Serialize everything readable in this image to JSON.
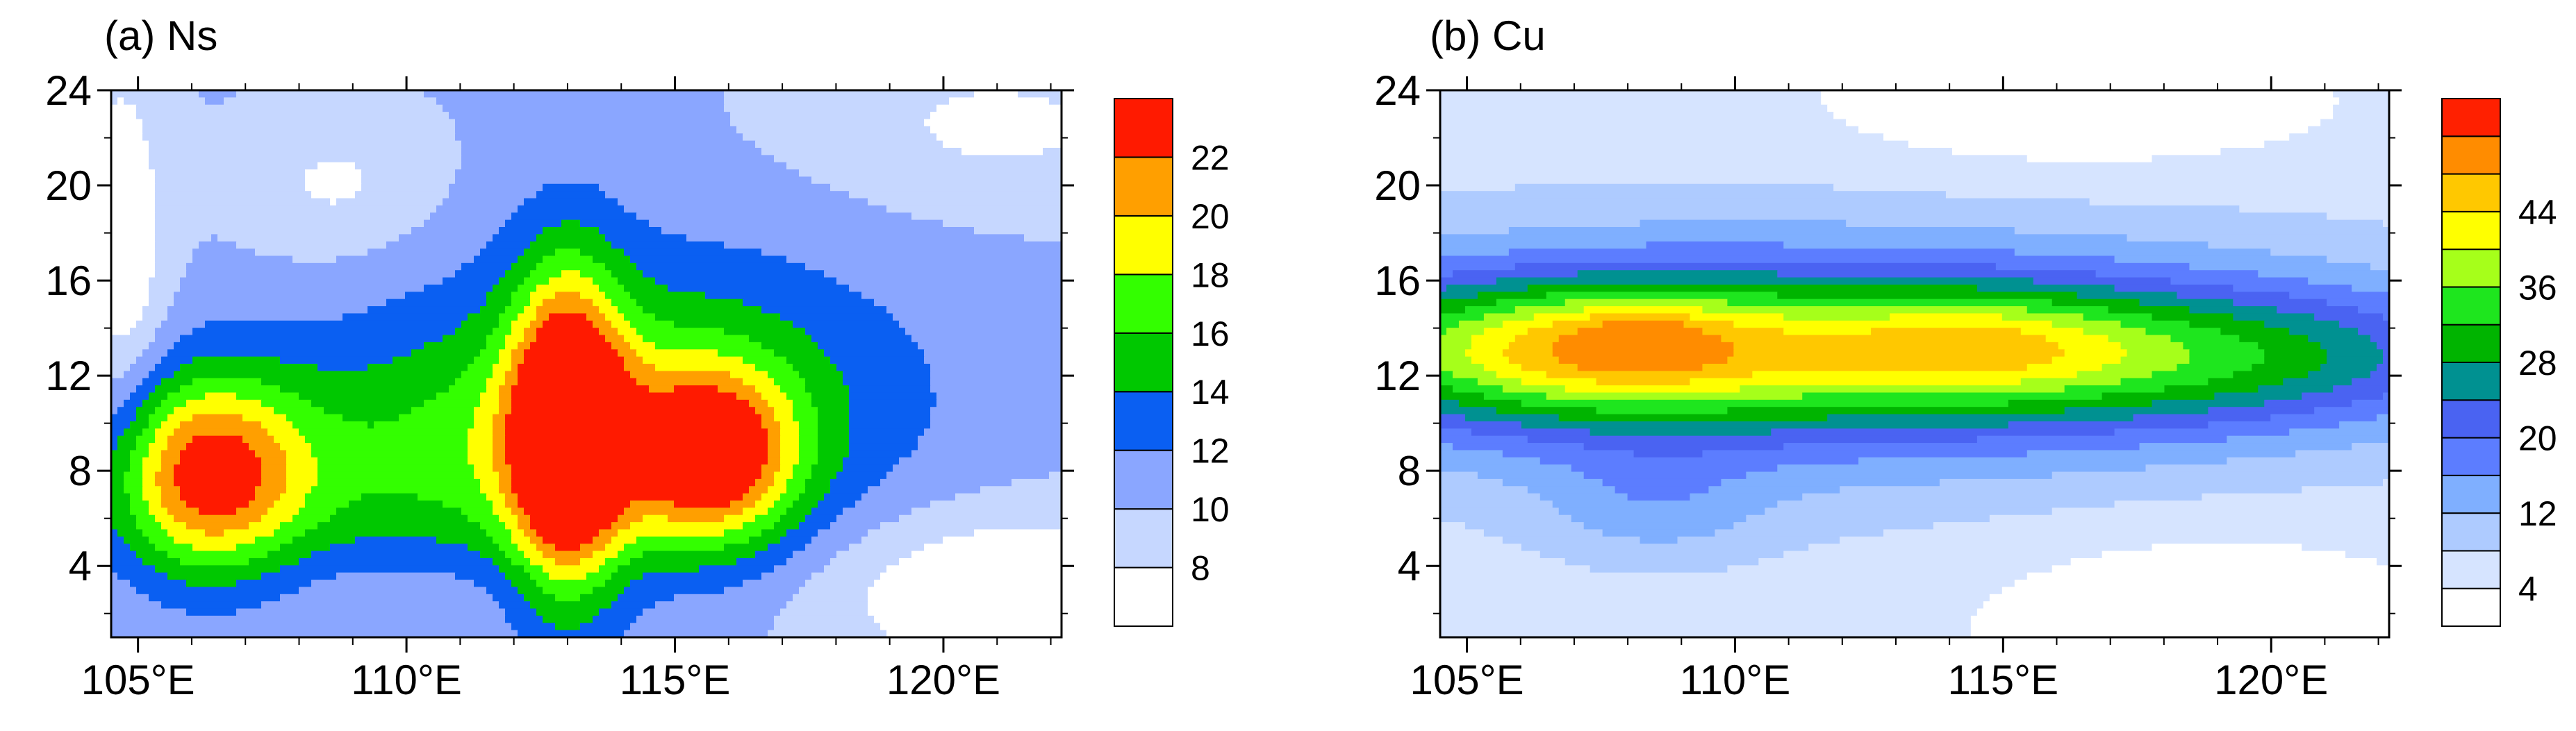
{
  "chart_data": [
    {
      "type": "heatmap",
      "subtype": "filled-contour",
      "title": "(a) Ns",
      "xlabel": "",
      "ylabel": "",
      "xlim": [
        104.5,
        122.2
      ],
      "ylim": [
        1,
        24
      ],
      "x_ticks": [
        105,
        110,
        115,
        120
      ],
      "x_tick_labels": [
        "105°E",
        "110°E",
        "115°E",
        "120°E"
      ],
      "y_ticks": [
        4,
        8,
        12,
        16,
        20,
        24
      ],
      "y_tick_labels": [
        "4",
        "8",
        "12",
        "16",
        "20",
        "24"
      ],
      "contour_levels": [
        8,
        10,
        12,
        14,
        16,
        18,
        20,
        22
      ],
      "colorbar_labels": [
        "22",
        "20",
        "18",
        "16",
        "14",
        "12",
        "10",
        "8"
      ],
      "colors": [
        "#ffffff",
        "#c6d7ff",
        "#8aa6ff",
        "#0a5ff2",
        "#00c800",
        "#33ff00",
        "#ffff00",
        "#ff9f00",
        "#ff1a00"
      ],
      "field": {
        "base": 10.2,
        "blobs": [
          {
            "x": 106.3,
            "y": 7.8,
            "amp": 11.5,
            "sx": 1.3,
            "sy": 3.0
          },
          {
            "x": 113.0,
            "y": 9.6,
            "amp": 13.8,
            "sx": 0.75,
            "sy": 4.8
          },
          {
            "x": 115.7,
            "y": 8.6,
            "amp": 10.8,
            "sx": 1.1,
            "sy": 2.6
          },
          {
            "x": 114.5,
            "y": 11.0,
            "amp": 5.5,
            "sx": 3.5,
            "sy": 4.5
          },
          {
            "x": 110.5,
            "y": 8.0,
            "amp": 4.2,
            "sx": 3.5,
            "sy": 3.5
          },
          {
            "x": 108.7,
            "y": 20.0,
            "amp": -2.6,
            "sx": 1.3,
            "sy": 2.2
          },
          {
            "x": 104.7,
            "y": 17.0,
            "amp": -4.0,
            "sx": 0.6,
            "sy": 6.0
          },
          {
            "x": 121.0,
            "y": 3.0,
            "amp": -4.5,
            "sx": 2.5,
            "sy": 2.5
          },
          {
            "x": 121.0,
            "y": 22.5,
            "amp": -2.6,
            "sx": 2.5,
            "sy": 2.5
          },
          {
            "x": 110.0,
            "y": 3.0,
            "amp": -1.2,
            "sx": 3.0,
            "sy": 1.5
          }
        ]
      }
    },
    {
      "type": "heatmap",
      "subtype": "filled-contour",
      "title": "(b) Cu",
      "xlabel": "",
      "ylabel": "",
      "xlim": [
        104.5,
        122.2
      ],
      "ylim": [
        1,
        24
      ],
      "x_ticks": [
        105,
        110,
        115,
        120
      ],
      "x_tick_labels": [
        "105°E",
        "110°E",
        "115°E",
        "120°E"
      ],
      "y_ticks": [
        4,
        8,
        12,
        16,
        20,
        24
      ],
      "y_tick_labels": [
        "4",
        "8",
        "12",
        "16",
        "20",
        "24"
      ],
      "contour_levels": [
        4,
        8,
        12,
        16,
        20,
        24,
        28,
        32,
        36,
        40,
        44,
        48
      ],
      "colorbar_labels": [
        "44",
        "36",
        "28",
        "20",
        "12",
        "4"
      ],
      "colors": [
        "#ffffff",
        "#d6e4ff",
        "#aecbff",
        "#7fafff",
        "#5c7dff",
        "#4a63f2",
        "#009191",
        "#00b400",
        "#1ee61e",
        "#a6ff1a",
        "#ffff00",
        "#ffc800",
        "#ff8c00",
        "#ff2000"
      ],
      "field": {
        "base": 4.5,
        "blobs": [
          {
            "x": 109.0,
            "y": 13.0,
            "amp": 25.0,
            "sx": 6.5,
            "sy": 2.4
          },
          {
            "x": 107.5,
            "y": 13.2,
            "amp": 12.0,
            "sx": 2.3,
            "sy": 1.8
          },
          {
            "x": 108.3,
            "y": 13.6,
            "amp": 6.5,
            "sx": 0.6,
            "sy": 0.7
          },
          {
            "x": 114.5,
            "y": 13.4,
            "amp": 8.0,
            "sx": 1.8,
            "sy": 1.5
          },
          {
            "x": 119.0,
            "y": 12.8,
            "amp": 14.0,
            "sx": 4.0,
            "sy": 2.0
          },
          {
            "x": 112.0,
            "y": 12.8,
            "amp": 11.0,
            "sx": 9.0,
            "sy": 5.0
          },
          {
            "x": 108.5,
            "y": 6.5,
            "amp": 6.0,
            "sx": 1.5,
            "sy": 1.8
          },
          {
            "x": 118.5,
            "y": 3.0,
            "amp": -4.0,
            "sx": 3.0,
            "sy": 2.5
          },
          {
            "x": 116.0,
            "y": 22.5,
            "amp": -4.0,
            "sx": 3.5,
            "sy": 2.0
          }
        ]
      }
    }
  ]
}
